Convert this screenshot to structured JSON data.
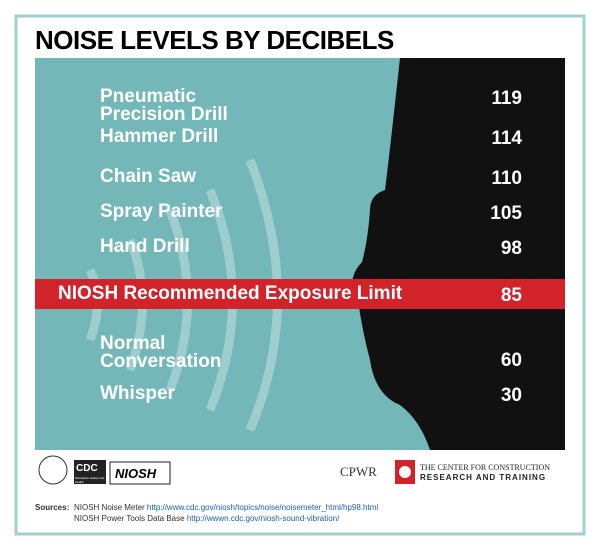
{
  "title": "NOISE LEVELS BY DECIBELS",
  "rows": [
    {
      "label": "Pneumatic Precision Drill",
      "value": 119
    },
    {
      "label": "Hammer Drill",
      "value": 114
    },
    {
      "label": "Chain Saw",
      "value": 110
    },
    {
      "label": "Spray Painter",
      "value": 105
    },
    {
      "label": "Hand Drill",
      "value": 98
    }
  ],
  "limit": {
    "label": "NIOSH Recommended Exposure Limit",
    "value": 85
  },
  "lower_rows": [
    {
      "label": "Normal Conversation",
      "value": 60
    },
    {
      "label": "Whisper",
      "value": 30
    }
  ],
  "logos": {
    "cdc": "CDC",
    "cdc_sub": "Workplace Safety and Health",
    "niosh": "NIOSH",
    "cpwr": "CPWR",
    "cpwr_line1": "THE CENTER FOR CONSTRUCTION",
    "cpwr_line2": "RESEARCH AND TRAINING"
  },
  "sources": {
    "label": "Sources:",
    "items": [
      {
        "name": "NIOSH Noise Meter",
        "url": "http://www.cdc.gov/niosh/topics/noise/noisemeter_html/hp98.html"
      },
      {
        "name": "NIOSH Power Tools Data Base",
        "url": "http://wwwn.cdc.gov/niosh-sound-vibration/"
      }
    ]
  }
}
